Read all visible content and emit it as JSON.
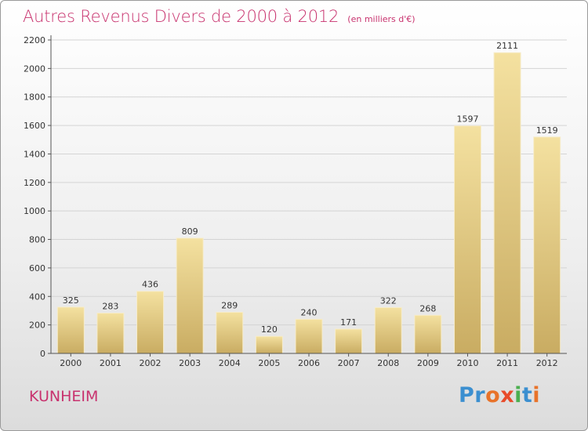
{
  "header": {
    "title": "Autres Revenus Divers de 2000 à 2012",
    "subtitle": "(en milliers d'€)"
  },
  "footer": {
    "commune": "KUNHEIM",
    "logo_text": "Proxiti"
  },
  "colors": {
    "title": "#c8326e",
    "bar_light": "#f4e1a0",
    "bar_dark": "#c9ac62",
    "logo": [
      "#3b8fd0",
      "#3b8fd0",
      "#e8732a",
      "#e84b2a",
      "#4caf50",
      "#3b8fd0",
      "#e8732a"
    ]
  },
  "chart_data": {
    "type": "bar",
    "title": "Autres Revenus Divers de 2000 à 2012",
    "subtitle": "(en milliers d'€)",
    "categories": [
      "2000",
      "2001",
      "2002",
      "2003",
      "2004",
      "2005",
      "2006",
      "2007",
      "2008",
      "2009",
      "2010",
      "2011",
      "2012"
    ],
    "values": [
      325,
      283,
      436,
      809,
      289,
      120,
      240,
      171,
      322,
      268,
      1597,
      2111,
      1519
    ],
    "ylim": [
      0,
      2200
    ],
    "yticks": [
      0,
      200,
      400,
      600,
      800,
      1000,
      1200,
      1400,
      1600,
      1800,
      2000,
      2200
    ],
    "grid": true,
    "data_labels": true
  }
}
